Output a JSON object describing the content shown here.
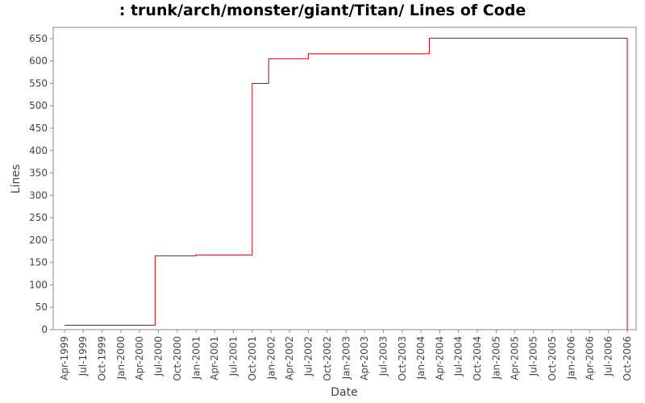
{
  "chart_data": {
    "type": "line",
    "title": ": trunk/arch/monster/giant/Titan/ Lines of Code",
    "xlabel": "Date",
    "ylabel": "Lines",
    "ylim": [
      0,
      675
    ],
    "yticks": [
      0,
      50,
      100,
      150,
      200,
      250,
      300,
      350,
      400,
      450,
      500,
      550,
      600,
      650
    ],
    "xticks": [
      "Apr-1999",
      "Jul-1999",
      "Oct-1999",
      "Jan-2000",
      "Apr-2000",
      "Jul-2000",
      "Oct-2000",
      "Jan-2001",
      "Apr-2001",
      "Jul-2001",
      "Oct-2001",
      "Jan-2002",
      "Apr-2002",
      "Jul-2002",
      "Oct-2002",
      "Jan-2003",
      "Apr-2003",
      "Jul-2003",
      "Oct-2003",
      "Jan-2004",
      "Apr-2004",
      "Jul-2004",
      "Oct-2004",
      "Jan-2005",
      "Apr-2005",
      "Jul-2005",
      "Oct-2005",
      "Jan-2006",
      "Apr-2006",
      "Jul-2006",
      "Oct-2006"
    ],
    "grid": false,
    "legend": "none",
    "line_color": "#cc0000",
    "series": [
      {
        "step": true,
        "x": [
          "1999-04-01",
          "2000-06-15",
          "2001-01-01",
          "2001-10-01",
          "2001-12-20",
          "2002-07-01",
          "2004-02-10",
          "2006-10-01"
        ],
        "y": [
          10,
          165,
          167,
          550,
          605,
          616,
          651,
          0
        ]
      }
    ]
  }
}
